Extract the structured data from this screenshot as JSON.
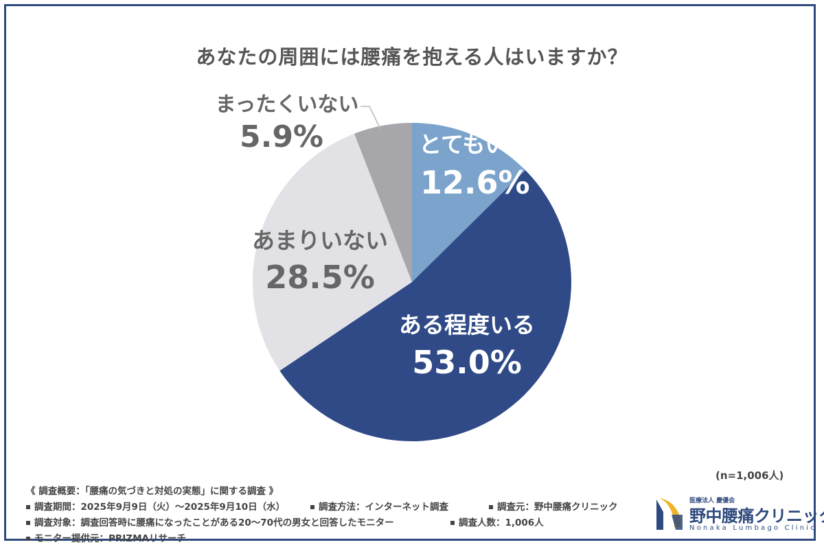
{
  "chart_data": {
    "type": "pie",
    "title": "あなたの周囲には腰痛を抱える人はいますか？",
    "categories": [
      "とてもいる",
      "ある程度いる",
      "あまりいない",
      "まったくいない"
    ],
    "values": [
      12.6,
      53.0,
      28.5,
      5.9
    ],
    "value_labels": [
      "12.6%",
      "53.0%",
      "28.5%",
      "5.9%"
    ],
    "colors": [
      "#7ba3cc",
      "#2f4a87",
      "#e2e1e6",
      "#a7a6ab"
    ],
    "label_colors": [
      "#ffffff",
      "#ffffff",
      "#666666",
      "#666666"
    ],
    "start": "12 o'clock, clockwise",
    "sample_size": "(n=1,006人)"
  },
  "footer": {
    "summary": "《 調査概要：「腰痛の気づきと対処の実態」に関する調査 》",
    "period": "調査期間：2025年9月9日（火）～2025年9月10日（水）",
    "method": "調査方法：インターネット調査",
    "source": "調査元：野中腰痛クリニック",
    "target": "調査対象：調査回答時に腰痛になったことがある20～70代の男女と回答したモニター",
    "respondents": "調査人数：1,006人",
    "provider": "モニター提供元：PRIZMAリサーチ"
  },
  "logo": {
    "subtitle": "医療法人 慶優会",
    "name": "野中腰痛クリニック",
    "english": "Nonaka Lumbago Clinic",
    "accent": "#2f4a7e",
    "mark_color": "#f0b429"
  }
}
